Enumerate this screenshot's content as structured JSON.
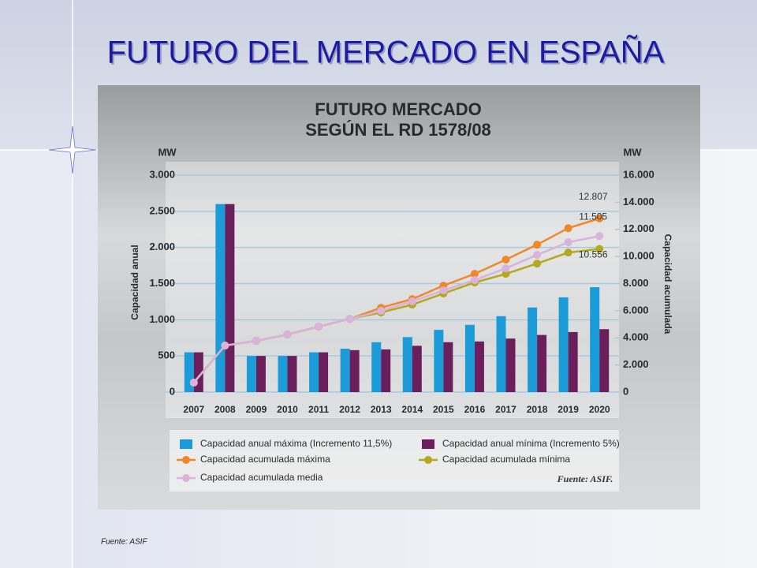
{
  "slide": {
    "title": "FUTURO DEL MERCADO EN ESPAÑA",
    "footer": "Fuente: ASIF"
  },
  "chart_data": {
    "type": "bar",
    "title": [
      "FUTURO MERCADO",
      "SEGÚN EL RD 1578/08"
    ],
    "ylabel": "Capacidad anual",
    "y2label": "Capacidad acumulada",
    "yunit": "MW",
    "y2unit": "MW",
    "source": "Fuente: ASIF.",
    "categories": [
      "2007",
      "2008",
      "2009",
      "2010",
      "2011",
      "2012",
      "2013",
      "2014",
      "2015",
      "2016",
      "2017",
      "2018",
      "2019",
      "2020"
    ],
    "ylim": [
      0,
      3000
    ],
    "yticks": [
      0,
      500,
      {
        "value": 1000,
        "label": "1.000"
      },
      {
        "value": 1500,
        "label": "1.500"
      },
      {
        "value": 2000,
        "label": "2.000"
      },
      {
        "value": 2500,
        "label": "2.500"
      },
      {
        "value": 3000,
        "label": "3.000"
      }
    ],
    "y2lim": [
      0,
      16000
    ],
    "y2ticks": [
      0,
      {
        "value": 2000,
        "label": "2.000"
      },
      {
        "value": 4000,
        "label": "4.000"
      },
      {
        "value": 6000,
        "label": "6.000"
      },
      {
        "value": 8000,
        "label": "8.000"
      },
      {
        "value": 10000,
        "label": "10.000"
      },
      {
        "value": 12000,
        "label": "12.000"
      },
      {
        "value": 14000,
        "label": "14.000"
      },
      {
        "value": 16000,
        "label": "16.000"
      }
    ],
    "grid": true,
    "series": [
      {
        "name": "Capacidad anual máxima (Incremento 11,5%)",
        "type": "bar",
        "color": "#1b9bd7",
        "values": [
          550,
          2600,
          500,
          500,
          550,
          600,
          690,
          760,
          860,
          930,
          1050,
          1170,
          1310,
          1450
        ]
      },
      {
        "name": "Capacidad anual mínima (Incremento 5%)",
        "type": "bar",
        "color": "#6a1f5c",
        "values": [
          550,
          2600,
          500,
          500,
          550,
          580,
          590,
          640,
          690,
          700,
          740,
          790,
          830,
          870
        ]
      },
      {
        "name": "Capacidad acumulada máxima",
        "type": "line",
        "axis": "y2",
        "color": "#f0882a",
        "values": [
          700,
          3430,
          3780,
          4240,
          4830,
          5400,
          6220,
          6860,
          7850,
          8720,
          9770,
          10870,
          12090,
          12807
        ],
        "value_labels": [
          null,
          null,
          null,
          null,
          null,
          null,
          null,
          null,
          null,
          null,
          null,
          null,
          null,
          "12.807"
        ]
      },
      {
        "name": "Capacidad acumulada mínima",
        "type": "line",
        "axis": "y2",
        "color": "#b3a91a",
        "values": [
          700,
          3430,
          3780,
          4240,
          4830,
          5400,
          5870,
          6450,
          7270,
          8080,
          8720,
          9480,
          10290,
          10556
        ],
        "value_labels": [
          null,
          null,
          null,
          null,
          null,
          null,
          null,
          null,
          null,
          null,
          null,
          null,
          null,
          "10.556"
        ]
      },
      {
        "name": "Capacidad acumulada media",
        "type": "line",
        "axis": "y2",
        "color": "#d9b3dc",
        "values": [
          700,
          3430,
          3780,
          4240,
          4830,
          5400,
          5990,
          6690,
          7500,
          8260,
          9130,
          10120,
          11050,
          11505
        ],
        "value_labels": [
          null,
          null,
          null,
          null,
          null,
          null,
          null,
          null,
          null,
          null,
          null,
          null,
          null,
          "11.505"
        ]
      }
    ]
  }
}
